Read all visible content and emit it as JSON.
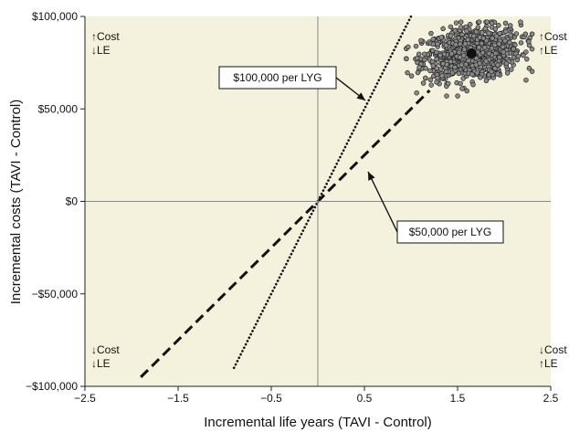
{
  "chart_data": {
    "type": "scatter",
    "title": "",
    "xlabel": "Incremental life years (TAVI - Control)",
    "ylabel": "Incremental costs (TAVI - Control)",
    "xlim": [
      -2.5,
      2.5
    ],
    "ylim": [
      -100000,
      100000
    ],
    "x_ticks": [
      -2.5,
      -1.5,
      -0.5,
      0.5,
      1.5,
      2.5
    ],
    "x_tick_labels": [
      "−2.5",
      "−1.5",
      "−0.5",
      "0.5",
      "1.5",
      "2.5"
    ],
    "y_ticks": [
      100000,
      50000,
      0,
      -50000,
      -100000
    ],
    "y_tick_labels": [
      "$100,000",
      "$50,000",
      "$0",
      "−$50,000",
      "−$100,000"
    ],
    "background_color": "#f4f1dc",
    "point_cloud": {
      "description_center": [
        1.65,
        80000
      ],
      "x_range": [
        0.95,
        2.3
      ],
      "y_range": [
        57000,
        97000
      ],
      "count": 900,
      "point_color": "#8a8a8a",
      "point_edge_color": "#222222"
    },
    "mean_point": {
      "x": 1.65,
      "y": 80000
    },
    "threshold_lines": [
      {
        "label": "$100,000 per LYG",
        "slope": 100000,
        "style": "dotted",
        "x_range": [
          -0.9,
          1.0
        ]
      },
      {
        "label": "$50,000 per LYG",
        "slope": 50000,
        "style": "dashed",
        "x_range": [
          -1.9,
          1.2
        ]
      }
    ],
    "quadrant_labels": {
      "top_left": [
        "↑Cost",
        "↓LE"
      ],
      "top_right": [
        "↑Cost",
        "↑LE"
      ],
      "bottom_left": [
        "↓Cost",
        "↓LE"
      ],
      "bottom_right": [
        "↓Cost",
        "↑LE"
      ]
    },
    "callouts": [
      {
        "text": "$100,000 per LYG",
        "line_ref": 0,
        "point": [
          0.57,
          57000
        ]
      },
      {
        "text": "$50,000 per LYG",
        "line_ref": 1,
        "point": [
          0.58,
          33000
        ]
      }
    ],
    "grid": false
  }
}
